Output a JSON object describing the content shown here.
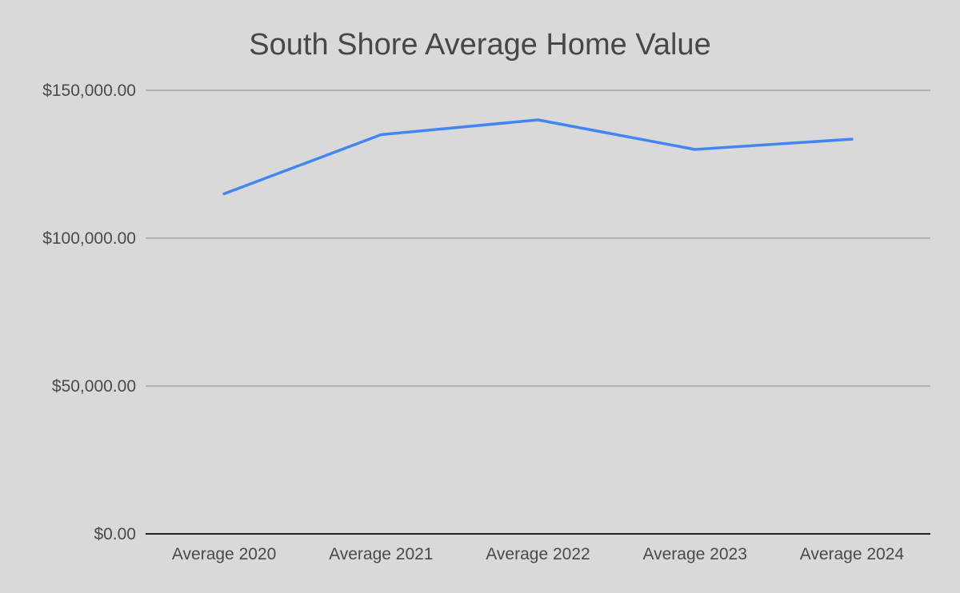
{
  "chart_data": {
    "type": "line",
    "title": "South Shore Average Home Value",
    "xlabel": "",
    "ylabel": "",
    "categories": [
      "Average 2020",
      "Average 2021",
      "Average 2022",
      "Average 2023",
      "Average 2024"
    ],
    "series": [
      {
        "values": [
          115000,
          135000,
          140000,
          130000,
          133500
        ],
        "color": "#4285f4"
      }
    ],
    "ylim": [
      0,
      150000
    ],
    "yticks": [
      0,
      50000,
      100000,
      150000
    ],
    "ytick_labels": [
      "$0.00",
      "$50,000.00",
      "$100,000.00",
      "$150,000.00"
    ],
    "grid": true,
    "legend": "none"
  }
}
